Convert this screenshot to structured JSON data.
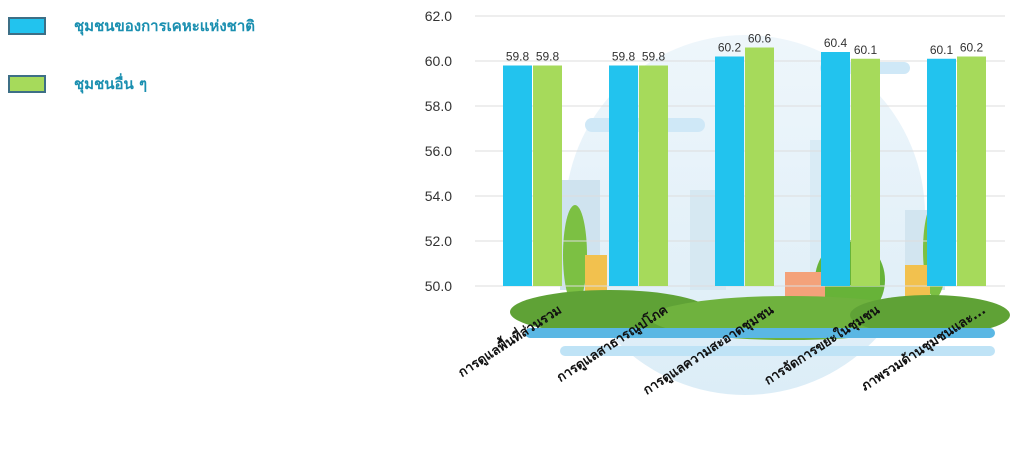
{
  "chart_data": {
    "type": "bar",
    "categories": [
      "การดูแลพื้นที่ส่วนรวม",
      "การดูแลสาธารณูปโภค",
      "การดูแลความสะอาดชุมชน",
      "การจัดการขยะในชุมชน",
      "ภาพรวมด้านชุมชนและ..."
    ],
    "series": [
      {
        "name": "ชุมชนของการเคหะแห่งชาติ",
        "values": [
          59.8,
          59.8,
          60.2,
          60.4,
          60.1
        ],
        "color": "#22c3ee"
      },
      {
        "name": "ชุมชนอื่น ๆ",
        "values": [
          59.8,
          59.8,
          60.6,
          60.1,
          60.2
        ],
        "color": "#a6da5b"
      }
    ],
    "ylim": [
      50.0,
      62.0
    ],
    "yticks": [
      "50.0",
      "52.0",
      "54.0",
      "56.0",
      "58.0",
      "60.0",
      "62.0"
    ],
    "grid": true,
    "legend_position": "top-left"
  }
}
